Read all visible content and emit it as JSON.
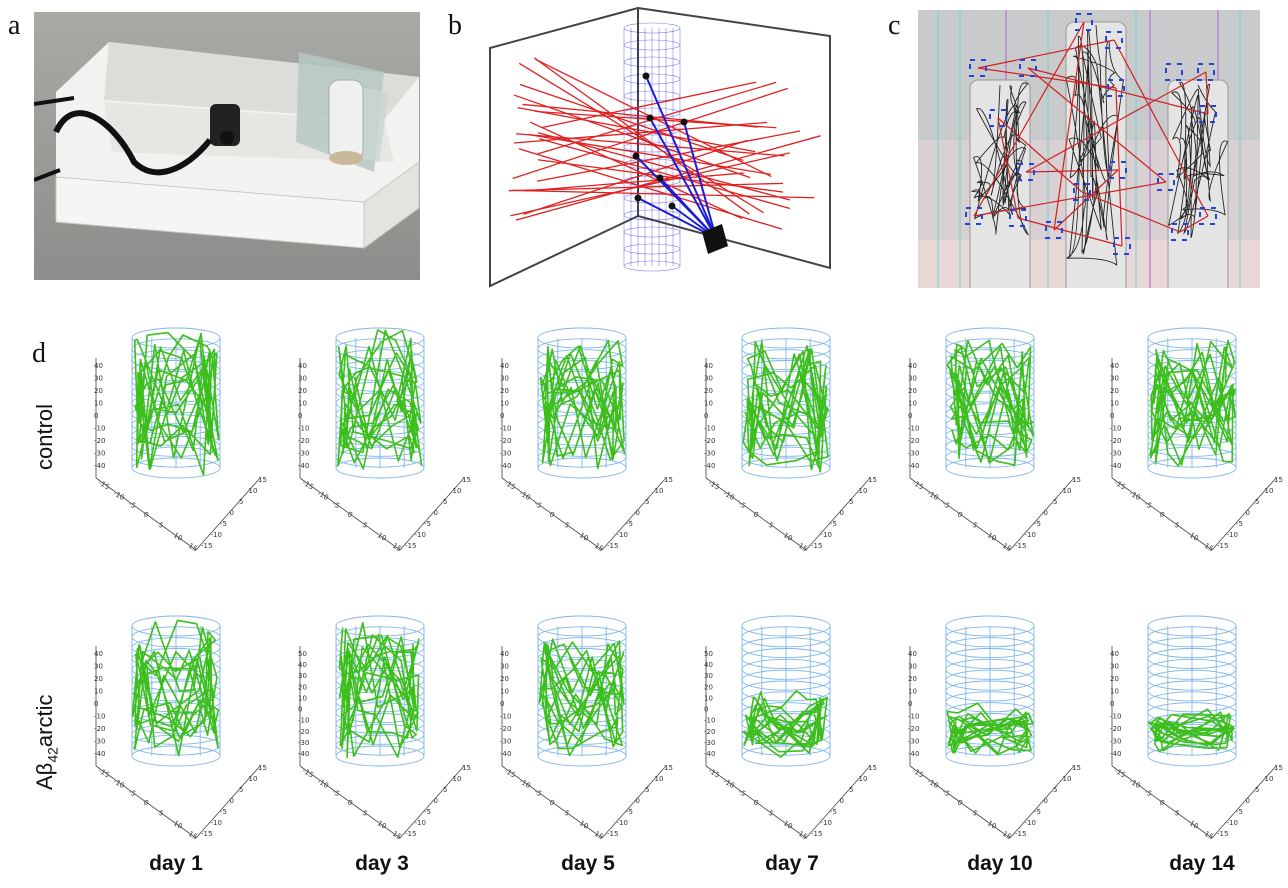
{
  "panels": {
    "a": "a",
    "b": "b",
    "c": "c",
    "d": "d"
  },
  "rows": [
    {
      "label_main": "control",
      "label_parts": []
    },
    {
      "label_main": "Aβ",
      "sub": "42",
      "suffix": "arctic"
    }
  ],
  "days": [
    "day 1",
    "day 3",
    "day 5",
    "day 7",
    "day 10",
    "day 14"
  ],
  "axes": {
    "z_ticks": [
      "40",
      "30",
      "20",
      "10",
      "0",
      "-10",
      "-20",
      "-30",
      "-40"
    ],
    "z_ticks_50": [
      "50",
      "40",
      "30",
      "20",
      "10",
      "0",
      "-10",
      "-20",
      "-30",
      "-40"
    ],
    "x_ticks": [
      "-15",
      "-10",
      "-5",
      "0",
      "5",
      "10",
      "15"
    ],
    "y_ticks": [
      "15",
      "10",
      "5",
      "0",
      "-5",
      "-10",
      "-15"
    ]
  },
  "colors": {
    "trajectory": "#3cbf1c",
    "cylinder": "#7fb6ea",
    "ray": "#e02020",
    "ray_blue": "#1c1cd8"
  },
  "plots": [
    {
      "row": 0,
      "day": "day 1",
      "fill_top": 1.0,
      "fill_bottom": 0.0,
      "zmax": 40
    },
    {
      "row": 0,
      "day": "day 3",
      "fill_top": 1.0,
      "fill_bottom": 0.0,
      "zmax": 40
    },
    {
      "row": 0,
      "day": "day 5",
      "fill_top": 1.0,
      "fill_bottom": 0.0,
      "zmax": 40
    },
    {
      "row": 0,
      "day": "day 7",
      "fill_top": 1.0,
      "fill_bottom": 0.0,
      "zmax": 40
    },
    {
      "row": 0,
      "day": "day 10",
      "fill_top": 0.95,
      "fill_bottom": 0.05,
      "zmax": 40
    },
    {
      "row": 0,
      "day": "day 14",
      "fill_top": 0.95,
      "fill_bottom": 0.05,
      "zmax": 40
    },
    {
      "row": 1,
      "day": "day 1",
      "fill_top": 1.0,
      "fill_bottom": 0.05,
      "zmax": 40
    },
    {
      "row": 1,
      "day": "day 3",
      "fill_top": 1.0,
      "fill_bottom": 0.0,
      "zmax": 50
    },
    {
      "row": 1,
      "day": "day 5",
      "fill_top": 0.9,
      "fill_bottom": 0.05,
      "zmax": 40
    },
    {
      "row": 1,
      "day": "day 7",
      "fill_top": 0.45,
      "fill_bottom": 0.05,
      "zmax": 50
    },
    {
      "row": 1,
      "day": "day 10",
      "fill_top": 0.35,
      "fill_bottom": 0.05,
      "zmax": 40
    },
    {
      "row": 1,
      "day": "day 14",
      "fill_top": 0.3,
      "fill_bottom": 0.08,
      "zmax": 40
    }
  ]
}
